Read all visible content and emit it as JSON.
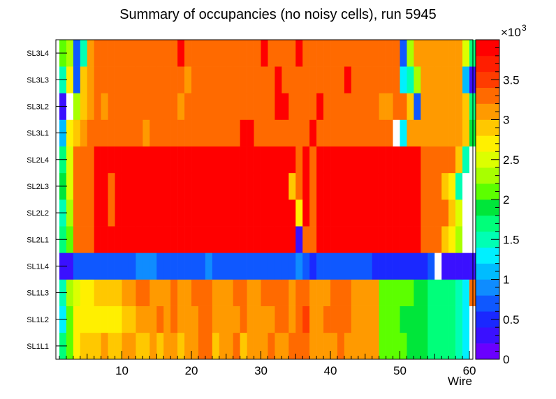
{
  "chart_data": {
    "type": "heatmap",
    "title": "Summary of occupancies (no noisy cells), run 5945",
    "xlabel": "Wire",
    "ylabel": "",
    "x_range": [
      0.5,
      60.5
    ],
    "x_ticks": [
      "10",
      "20",
      "30",
      "40",
      "50",
      "60"
    ],
    "y_categories": [
      "SL1L1",
      "SL1L2",
      "SL1L3",
      "SL1L4",
      "SL2L1",
      "SL2L2",
      "SL2L3",
      "SL2L4",
      "SL3L1",
      "SL3L2",
      "SL3L3",
      "SL3L4"
    ],
    "zlim": [
      0,
      4000
    ],
    "colorbar_ticks": [
      "0",
      "0.5",
      "1",
      "1.5",
      "2",
      "2.5",
      "3",
      "3.5"
    ],
    "colorbar_multiplier": "×10",
    "colorbar_exponent": "3",
    "approx_cell_values_in_thousands": {
      "SL1L1": [
        1.6,
        2.0,
        2.6,
        2.8,
        2.9,
        2.9,
        3.0,
        2.9,
        2.9,
        3.0,
        3.0,
        2.9,
        2.9,
        3.0,
        2.9,
        3.0,
        3.0,
        2.9,
        3.0,
        3.0,
        3.2,
        3.3,
        2.9,
        3.0,
        3.0,
        3.2,
        2.9,
        3.0,
        3.0,
        3.0,
        3.2,
        3.0,
        3.0,
        3.3,
        3.3,
        3.3,
        3.0,
        3.0,
        3.0,
        3.0,
        3.2,
        3.0,
        3.0,
        3.0,
        3.0,
        3.0,
        2.0,
        2.0,
        2.0,
        2.0,
        1.9,
        1.9,
        1.9,
        1.7,
        1.7,
        1.6,
        1.6,
        1.4,
        1.2,
        0.0
      ],
      "SL1L2": [
        1.3,
        2.0,
        2.6,
        2.7,
        2.7,
        2.7,
        2.7,
        2.7,
        2.7,
        2.9,
        2.9,
        3.0,
        3.0,
        3.0,
        3.2,
        3.0,
        3.2,
        3.0,
        3.0,
        3.0,
        3.2,
        3.3,
        3.0,
        3.0,
        3.0,
        3.0,
        3.3,
        3.0,
        3.0,
        3.0,
        3.0,
        3.2,
        3.2,
        3.0,
        3.3,
        3.5,
        3.0,
        3.0,
        3.3,
        3.2,
        3.2,
        3.3,
        3.0,
        3.0,
        3.0,
        3.0,
        2.0,
        2.0,
        2.0,
        1.9,
        1.9,
        1.9,
        1.9,
        1.7,
        1.7,
        1.6,
        1.6,
        1.5,
        1.3,
        0.0
      ],
      "SL1L3": [
        1.4,
        2.2,
        2.4,
        2.6,
        2.7,
        2.9,
        2.8,
        2.9,
        2.9,
        3.0,
        3.0,
        3.2,
        3.2,
        3.0,
        3.0,
        3.0,
        3.2,
        3.0,
        3.0,
        3.3,
        3.2,
        3.2,
        3.0,
        3.0,
        3.0,
        3.2,
        3.3,
        3.0,
        3.0,
        3.2,
        3.3,
        3.3,
        3.3,
        3.0,
        3.3,
        3.2,
        3.0,
        3.0,
        3.0,
        3.3,
        3.3,
        3.3,
        3.0,
        3.0,
        3.0,
        3.0,
        2.0,
        2.0,
        2.0,
        2.0,
        2.0,
        1.9,
        1.9,
        1.7,
        1.7,
        1.6,
        1.6,
        1.4,
        1.3,
        3.3
      ],
      "SL1L4": [
        0.3,
        0.3,
        0.6,
        0.6,
        0.6,
        0.6,
        0.6,
        0.6,
        0.6,
        0.6,
        0.6,
        0.9,
        0.9,
        0.9,
        0.6,
        0.6,
        0.6,
        0.6,
        0.6,
        0.6,
        0.6,
        0.9,
        0.6,
        0.6,
        0.6,
        0.6,
        0.6,
        0.6,
        0.6,
        0.6,
        0.6,
        0.6,
        0.6,
        0.6,
        0.9,
        0.6,
        0.4,
        0.6,
        0.6,
        0.6,
        0.6,
        0.6,
        0.6,
        0.6,
        0.6,
        0.4,
        0.4,
        0.4,
        0.4,
        0.4,
        0.4,
        0.4,
        0.4,
        0.6,
        0.0,
        0.3,
        0.3,
        0.3,
        0.3,
        0.3
      ],
      "SL2L1": [
        1.6,
        2.0,
        3.3,
        3.3,
        3.3,
        3.8,
        3.8,
        3.8,
        3.8,
        3.8,
        3.8,
        3.8,
        3.8,
        3.8,
        3.8,
        3.8,
        3.8,
        3.8,
        3.8,
        3.8,
        3.8,
        3.8,
        3.8,
        3.8,
        3.8,
        3.8,
        3.8,
        3.8,
        3.8,
        3.8,
        3.8,
        3.8,
        3.8,
        3.8,
        0.3,
        3.3,
        3.3,
        3.8,
        3.8,
        3.8,
        3.8,
        3.8,
        3.8,
        3.8,
        3.8,
        3.8,
        3.8,
        3.8,
        3.8,
        3.8,
        3.8,
        3.8,
        3.3,
        3.3,
        3.3,
        2.9,
        2.7,
        2.2,
        0.0,
        0.0
      ],
      "SL2L2": [
        1.5,
        2.2,
        3.3,
        3.3,
        3.3,
        3.8,
        3.8,
        3.3,
        3.8,
        3.8,
        3.8,
        3.8,
        3.8,
        3.8,
        3.8,
        3.8,
        3.8,
        3.8,
        3.8,
        3.8,
        3.8,
        3.8,
        3.8,
        3.8,
        3.8,
        3.8,
        3.8,
        3.8,
        3.8,
        3.8,
        3.8,
        3.8,
        3.8,
        3.8,
        2.6,
        3.8,
        3.3,
        3.8,
        3.8,
        3.8,
        3.8,
        3.8,
        3.8,
        3.8,
        3.8,
        3.8,
        3.8,
        3.8,
        3.8,
        3.8,
        3.8,
        3.8,
        3.3,
        3.3,
        3.3,
        3.3,
        2.9,
        2.4,
        0.0,
        0.0
      ],
      "SL2L3": [
        1.8,
        2.4,
        3.3,
        3.3,
        3.3,
        3.8,
        3.8,
        3.3,
        3.8,
        3.8,
        3.8,
        3.8,
        3.8,
        3.8,
        3.8,
        3.8,
        3.8,
        3.8,
        3.8,
        3.8,
        3.8,
        3.8,
        3.8,
        3.8,
        3.8,
        3.8,
        3.8,
        3.8,
        3.8,
        3.8,
        3.8,
        3.8,
        3.8,
        2.9,
        3.3,
        3.8,
        3.3,
        3.8,
        3.8,
        3.8,
        3.8,
        3.8,
        3.8,
        3.8,
        3.8,
        3.8,
        3.8,
        3.8,
        3.8,
        3.8,
        3.8,
        3.8,
        3.3,
        3.3,
        3.3,
        2.9,
        2.7,
        1.5,
        0.0,
        0.0
      ],
      "SL2L4": [
        1.7,
        2.4,
        3.3,
        3.3,
        3.3,
        3.8,
        3.8,
        3.8,
        3.8,
        3.8,
        3.8,
        3.8,
        3.8,
        3.8,
        3.8,
        3.8,
        3.8,
        3.8,
        3.8,
        3.8,
        3.8,
        3.8,
        3.8,
        3.8,
        3.8,
        3.8,
        3.8,
        3.8,
        3.8,
        3.8,
        3.8,
        3.8,
        3.8,
        3.8,
        3.3,
        3.8,
        3.3,
        3.8,
        3.8,
        3.8,
        3.8,
        3.8,
        3.8,
        3.8,
        3.8,
        3.8,
        3.8,
        3.8,
        3.8,
        3.8,
        3.8,
        3.8,
        3.3,
        3.3,
        3.3,
        3.3,
        3.3,
        2.9,
        1.4,
        0.0
      ],
      "SL3L1": [
        1.1,
        2.6,
        2.9,
        3.0,
        3.3,
        3.3,
        3.3,
        3.3,
        3.2,
        3.3,
        3.3,
        3.3,
        3.0,
        3.3,
        3.3,
        3.3,
        3.3,
        3.3,
        3.3,
        3.3,
        3.3,
        3.3,
        3.3,
        3.3,
        3.3,
        3.3,
        3.8,
        3.8,
        3.3,
        3.3,
        3.3,
        3.3,
        3.3,
        3.3,
        3.3,
        3.3,
        3.8,
        3.3,
        3.3,
        3.3,
        3.3,
        3.3,
        3.3,
        3.3,
        3.3,
        3.3,
        3.3,
        3.3,
        0.0,
        1.3,
        3.0,
        3.0,
        3.0,
        3.0,
        3.0,
        3.0,
        3.0,
        3.0,
        2.9,
        1.8
      ],
      "SL3L2": [
        0.3,
        0.0,
        2.2,
        2.9,
        3.0,
        3.3,
        3.0,
        3.3,
        3.3,
        3.3,
        3.3,
        3.3,
        3.3,
        3.3,
        3.3,
        3.3,
        3.3,
        3.0,
        3.3,
        3.3,
        3.3,
        3.3,
        3.3,
        3.3,
        3.3,
        3.3,
        3.3,
        3.3,
        3.3,
        3.3,
        3.3,
        3.8,
        3.8,
        3.3,
        3.3,
        3.3,
        3.3,
        3.8,
        3.3,
        3.3,
        3.3,
        3.3,
        3.3,
        3.3,
        3.3,
        3.3,
        3.0,
        3.0,
        3.3,
        3.3,
        2.9,
        0.6,
        3.0,
        3.0,
        3.0,
        3.0,
        3.0,
        3.0,
        2.9,
        1.6
      ],
      "SL3L3": [
        1.4,
        2.6,
        0.6,
        2.9,
        3.0,
        3.3,
        3.3,
        3.3,
        3.3,
        3.3,
        3.3,
        3.3,
        3.3,
        3.3,
        3.3,
        3.3,
        3.3,
        3.3,
        3.0,
        3.3,
        3.3,
        3.3,
        3.3,
        3.3,
        3.3,
        3.3,
        3.3,
        3.3,
        3.3,
        3.3,
        3.3,
        3.8,
        3.3,
        3.3,
        3.3,
        3.3,
        3.3,
        3.3,
        3.3,
        3.3,
        3.3,
        3.8,
        3.3,
        3.3,
        3.3,
        3.3,
        3.3,
        3.3,
        3.3,
        1.3,
        1.5,
        2.2,
        3.0,
        3.0,
        3.0,
        3.0,
        3.0,
        3.0,
        1.0,
        0.3
      ],
      "SL3L4": [
        2.0,
        2.2,
        0.6,
        1.4,
        3.0,
        3.3,
        3.3,
        3.3,
        3.3,
        3.3,
        3.3,
        3.3,
        3.3,
        3.3,
        3.3,
        3.3,
        3.3,
        3.8,
        3.3,
        3.3,
        3.3,
        3.3,
        3.3,
        3.3,
        3.3,
        3.3,
        3.3,
        3.3,
        3.3,
        3.8,
        3.3,
        3.3,
        3.3,
        3.3,
        3.8,
        3.3,
        3.3,
        3.3,
        3.3,
        3.3,
        3.3,
        3.3,
        3.3,
        3.3,
        3.3,
        3.3,
        3.3,
        3.3,
        3.3,
        0.6,
        2.2,
        3.0,
        3.0,
        3.0,
        3.0,
        3.0,
        3.0,
        3.0,
        2.4,
        1.6
      ]
    }
  }
}
